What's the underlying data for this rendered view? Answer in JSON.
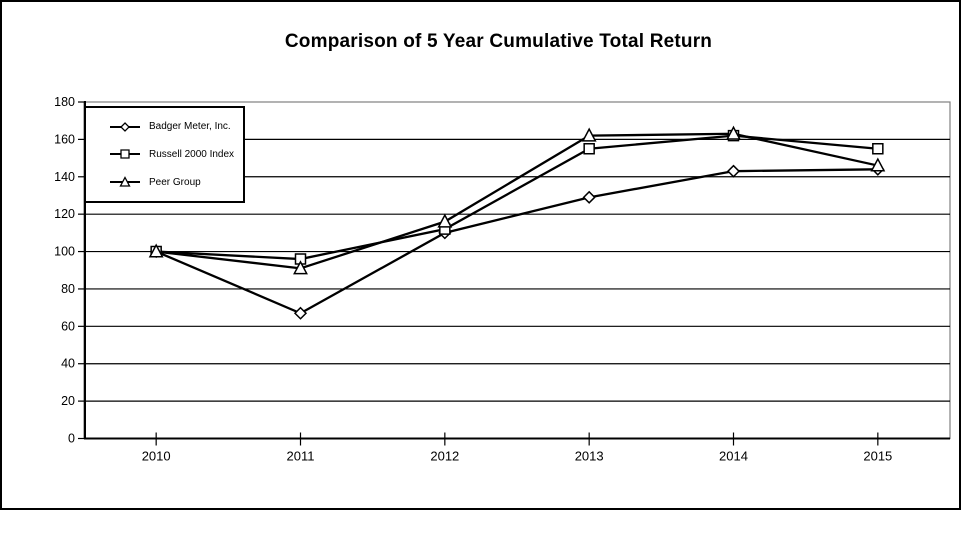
{
  "title": "Comparison of 5 Year Cumulative Total Return",
  "colors": {
    "series_line": "#000000",
    "gridline": "#000000",
    "plot_border": "#808080",
    "marker_fill": "#ffffff",
    "background": "#ffffff",
    "text": "#000000"
  },
  "chart_data": {
    "type": "line",
    "title": "Comparison of 5 Year Cumulative Total Return",
    "xlabel": "",
    "ylabel": "",
    "categories": [
      "2010",
      "2011",
      "2012",
      "2013",
      "2014",
      "2015"
    ],
    "series": [
      {
        "name": "Badger Meter, Inc.",
        "marker": "diamond",
        "values": [
          100,
          67,
          110,
          129,
          143,
          144
        ]
      },
      {
        "name": "Russell 2000 Index",
        "marker": "square",
        "values": [
          100,
          96,
          112,
          155,
          162,
          155
        ]
      },
      {
        "name": "Peer Group",
        "marker": "triangle",
        "values": [
          100,
          91,
          116,
          162,
          163,
          146
        ]
      }
    ],
    "ylim": [
      0,
      180
    ],
    "yticks": [
      0,
      20,
      40,
      60,
      80,
      100,
      120,
      140,
      160,
      180
    ],
    "grid": true,
    "legend_position": "top-left-inside"
  }
}
